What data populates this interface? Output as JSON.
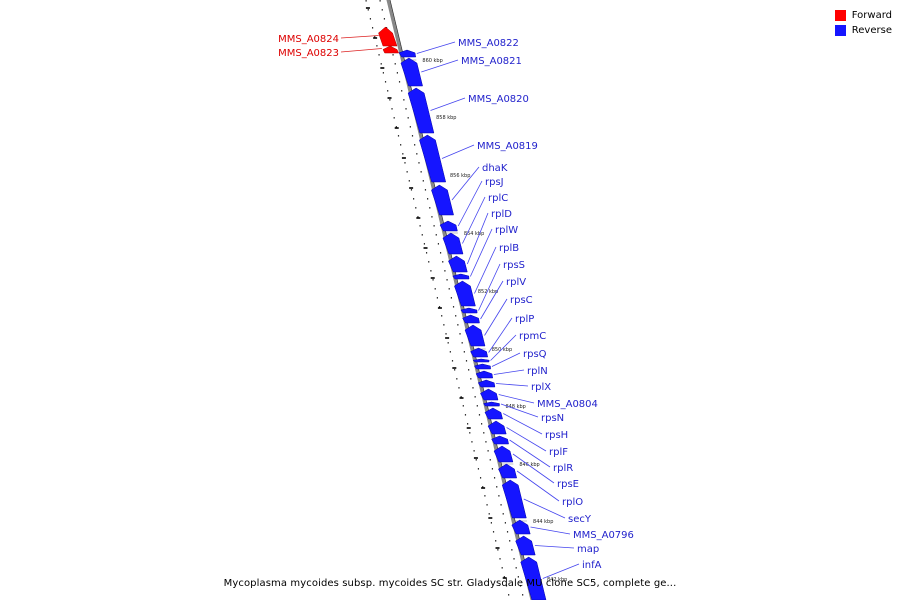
{
  "colors": {
    "forward": "#ff0000",
    "reverse": "#1515ff",
    "backbone": "#888888",
    "label_line": "#4444ee"
  },
  "legend": {
    "forward_label": "Forward",
    "reverse_label": "Reverse"
  },
  "caption": "Mycoplasma mycoides subsp. mycoides SC str. Gladysdale MU clone SC5, complete ge...",
  "ticks": [
    {
      "label": "860 kbp",
      "pos": 60
    },
    {
      "label": "858 kbp",
      "pos": 117
    },
    {
      "label": "856 kbp",
      "pos": 175
    },
    {
      "label": "854 kbp",
      "pos": 233
    },
    {
      "label": "852 kbp",
      "pos": 291
    },
    {
      "label": "850 kbp",
      "pos": 349
    },
    {
      "label": "848 kbp",
      "pos": 406
    },
    {
      "label": "846 kbp",
      "pos": 464
    },
    {
      "label": "844 kbp",
      "pos": 521
    },
    {
      "label": "842 kbp",
      "pos": 579
    }
  ],
  "forward_genes": [
    {
      "label": "MMS_A0824",
      "start": 27,
      "end": 46
    },
    {
      "label": "MMS_A0823",
      "start": 46,
      "end": 53
    }
  ],
  "reverse_genes": [
    {
      "label": "MMS_A0822",
      "start": 50,
      "end": 57
    },
    {
      "label": "MMS_A0821",
      "start": 58,
      "end": 86
    },
    {
      "label": "MMS_A0820",
      "start": 88,
      "end": 133
    },
    {
      "label": "MMS_A0819",
      "start": 135,
      "end": 182
    },
    {
      "label": "dhaK",
      "start": 185,
      "end": 215
    },
    {
      "label": "rpsJ",
      "start": 221,
      "end": 231
    },
    {
      "label": "rplC",
      "start": 233,
      "end": 254
    },
    {
      "label": "rplD",
      "start": 256,
      "end": 272
    },
    {
      "label": "rplW",
      "start": 274,
      "end": 279
    },
    {
      "label": "rplB",
      "start": 281,
      "end": 306
    },
    {
      "label": "rpsS",
      "start": 308,
      "end": 313
    },
    {
      "label": "rplV",
      "start": 315,
      "end": 323
    },
    {
      "label": "rpsC",
      "start": 325,
      "end": 346
    },
    {
      "label": "rplP",
      "start": 348,
      "end": 357
    },
    {
      "label": "rpmC",
      "start": 359,
      "end": 362
    },
    {
      "label": "rpsQ",
      "start": 364,
      "end": 369
    },
    {
      "label": "rplN",
      "start": 371,
      "end": 378
    },
    {
      "label": "rplX",
      "start": 380,
      "end": 387
    },
    {
      "label": "MMS_A0804",
      "start": 389,
      "end": 400
    },
    {
      "label": "rpsN",
      "start": 402,
      "end": 406
    },
    {
      "label": "rpsH",
      "start": 408,
      "end": 419
    },
    {
      "label": "rplF",
      "start": 421,
      "end": 434
    },
    {
      "label": "rplR",
      "start": 436,
      "end": 444
    },
    {
      "label": "rpsE",
      "start": 446,
      "end": 462
    },
    {
      "label": "rplO",
      "start": 464,
      "end": 478
    },
    {
      "label": "secY",
      "start": 480,
      "end": 518
    },
    {
      "label": "MMS_A0796",
      "start": 520,
      "end": 534
    },
    {
      "label": "map",
      "start": 536,
      "end": 555
    },
    {
      "label": "infA",
      "start": 557,
      "end": 600
    }
  ]
}
